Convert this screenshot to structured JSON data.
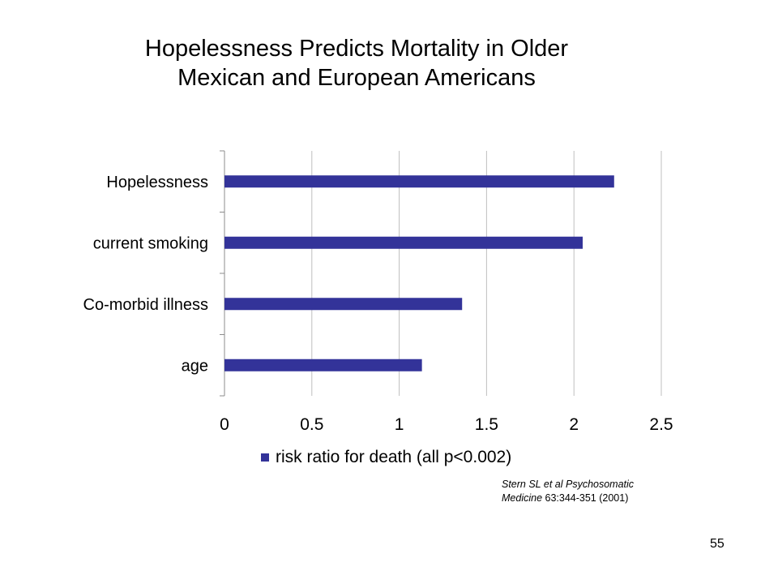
{
  "slide": {
    "title_line1": "Hopelessness Predicts Mortality in Older",
    "title_line2": "Mexican and European Americans",
    "citation_line1": "Stern SL et al Psychosomatic",
    "citation_journal": "Medicine",
    "citation_details": " 63:344-351 (2001)",
    "page_number": "55"
  },
  "colors": {
    "bar": "#333399",
    "grid": "#bfbfbf",
    "axis": "#8c8c8c"
  },
  "chart_data": {
    "type": "bar",
    "orientation": "horizontal",
    "title": "Hopelessness Predicts Mortality in Older Mexican and European Americans",
    "categories": [
      "age",
      "Co-morbid illness",
      "current smoking",
      "Hopelessness"
    ],
    "series": [
      {
        "name": "risk ratio for death (all p<0.002)",
        "values": [
          1.13,
          1.36,
          2.05,
          2.23
        ]
      }
    ],
    "xlim": [
      0,
      2.5
    ],
    "xticks": [
      0,
      0.5,
      1,
      1.5,
      2,
      2.5
    ],
    "xtick_labels": [
      "0",
      "0.5",
      "1",
      "1.5",
      "2",
      "2.5"
    ],
    "xlabel": "",
    "ylabel": "",
    "grid": "vertical",
    "legend_position": "bottom"
  }
}
